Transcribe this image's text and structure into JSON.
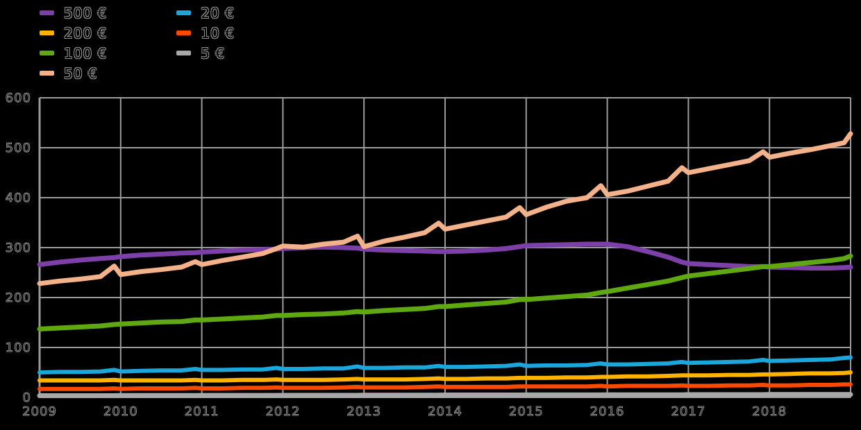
{
  "chart_data": {
    "type": "line",
    "title": "",
    "xlabel": "",
    "ylabel": "",
    "xlim": [
      2009,
      2019
    ],
    "ylim": [
      0,
      600
    ],
    "y_ticks": [
      0,
      100,
      200,
      300,
      400,
      500,
      600
    ],
    "x_ticks": [
      2009,
      2010,
      2011,
      2012,
      2013,
      2014,
      2015,
      2016,
      2017,
      2018
    ],
    "grid": true,
    "legend_position": "top-left",
    "background_color": "#000000",
    "grid_color": "#9b9b9b",
    "tick_fill_color": "#000000",
    "tick_outline_color": "#8f8f8f",
    "x": [
      2009,
      2009.25,
      2009.5,
      2009.75,
      2009.92,
      2010,
      2010.25,
      2010.5,
      2010.75,
      2010.92,
      2011,
      2011.25,
      2011.5,
      2011.75,
      2011.92,
      2012,
      2012.25,
      2012.5,
      2012.75,
      2012.92,
      2013,
      2013.25,
      2013.5,
      2013.75,
      2013.92,
      2014,
      2014.25,
      2014.5,
      2014.75,
      2014.92,
      2015,
      2015.25,
      2015.5,
      2015.75,
      2015.92,
      2016,
      2016.25,
      2016.5,
      2016.75,
      2016.92,
      2017,
      2017.25,
      2017.5,
      2017.75,
      2017.92,
      2018,
      2018.25,
      2018.5,
      2018.75,
      2018.92,
      2019
    ],
    "series": [
      {
        "name": "500 €",
        "color": "#7d3fa8",
        "width": 7,
        "values": [
          266,
          271,
          275,
          278,
          280,
          282,
          285,
          287,
          289,
          290,
          291,
          293,
          295,
          296,
          297,
          298,
          300,
          301,
          300,
          299,
          297,
          295,
          294,
          293,
          292,
          292,
          293,
          295,
          298,
          302,
          304,
          305,
          306,
          307,
          307,
          307,
          302,
          292,
          281,
          271,
          268,
          266,
          264,
          262,
          262,
          261,
          260,
          259,
          259,
          260,
          261
        ]
      },
      {
        "name": "200 €",
        "color": "#ffb300",
        "width": 6,
        "values": [
          34,
          34,
          34,
          34,
          35,
          34,
          34,
          34,
          34,
          35,
          34,
          34,
          35,
          35,
          36,
          35,
          35,
          35,
          36,
          37,
          36,
          36,
          36,
          37,
          38,
          37,
          37,
          38,
          38,
          39,
          39,
          39,
          40,
          40,
          41,
          41,
          42,
          42,
          43,
          44,
          44,
          44,
          45,
          45,
          46,
          46,
          47,
          48,
          48,
          49,
          50
        ]
      },
      {
        "name": "100 €",
        "color": "#5fa812",
        "width": 7,
        "values": [
          137,
          139,
          141,
          143,
          146,
          147,
          149,
          151,
          152,
          155,
          155,
          157,
          159,
          161,
          164,
          164,
          166,
          167,
          169,
          172,
          171,
          174,
          176,
          178,
          182,
          182,
          185,
          188,
          191,
          196,
          196,
          199,
          202,
          205,
          210,
          212,
          219,
          226,
          233,
          240,
          243,
          248,
          253,
          258,
          262,
          262,
          266,
          270,
          274,
          278,
          283
        ]
      },
      {
        "name": "50 €",
        "color": "#f3b28a",
        "width": 7,
        "values": [
          228,
          233,
          237,
          242,
          263,
          246,
          252,
          256,
          261,
          272,
          266,
          274,
          281,
          288,
          298,
          303,
          301,
          307,
          311,
          323,
          302,
          313,
          321,
          330,
          349,
          337,
          345,
          353,
          361,
          380,
          366,
          381,
          393,
          400,
          424,
          406,
          413,
          423,
          433,
          460,
          450,
          458,
          466,
          474,
          492,
          481,
          489,
          496,
          504,
          510,
          528
        ]
      },
      {
        "name": "20 €",
        "color": "#1ba6dc",
        "width": 6,
        "values": [
          50,
          51,
          51,
          52,
          55,
          52,
          53,
          54,
          54,
          57,
          55,
          55,
          56,
          56,
          59,
          57,
          57,
          58,
          58,
          62,
          59,
          59,
          60,
          60,
          63,
          61,
          61,
          62,
          63,
          66,
          63,
          64,
          64,
          65,
          68,
          66,
          66,
          67,
          68,
          71,
          69,
          70,
          71,
          72,
          75,
          73,
          74,
          75,
          76,
          79,
          80
        ]
      },
      {
        "name": "10 €",
        "color": "#f84b00",
        "width": 6,
        "values": [
          17,
          17,
          17,
          17,
          18,
          17,
          18,
          18,
          18,
          19,
          18,
          18,
          19,
          19,
          20,
          19,
          19,
          19,
          20,
          21,
          20,
          20,
          20,
          21,
          22,
          21,
          21,
          21,
          21,
          22,
          22,
          22,
          22,
          22,
          23,
          22,
          23,
          23,
          23,
          24,
          23,
          23,
          24,
          24,
          25,
          24,
          24,
          25,
          25,
          26,
          26
        ]
      },
      {
        "name": "5 €",
        "color": "#a8a8a8",
        "width": 7,
        "values": [
          3.5,
          3.5,
          3.5,
          3.5,
          3.5,
          3.8,
          3.8,
          3.8,
          3.8,
          3.8,
          4,
          4,
          4,
          4,
          4,
          4.2,
          4.2,
          4.2,
          4.2,
          4.2,
          4.5,
          4.5,
          4.5,
          4.5,
          4.5,
          4.8,
          4.8,
          4.8,
          4.8,
          4.8,
          5,
          5,
          5,
          5,
          5,
          5.3,
          5.3,
          5.3,
          5.3,
          5.3,
          5.6,
          5.6,
          5.6,
          5.6,
          5.6,
          6,
          6,
          6,
          6,
          6,
          6
        ]
      }
    ],
    "legend_columns": [
      [
        0,
        1,
        2,
        3
      ],
      [
        4,
        5,
        6
      ]
    ]
  }
}
